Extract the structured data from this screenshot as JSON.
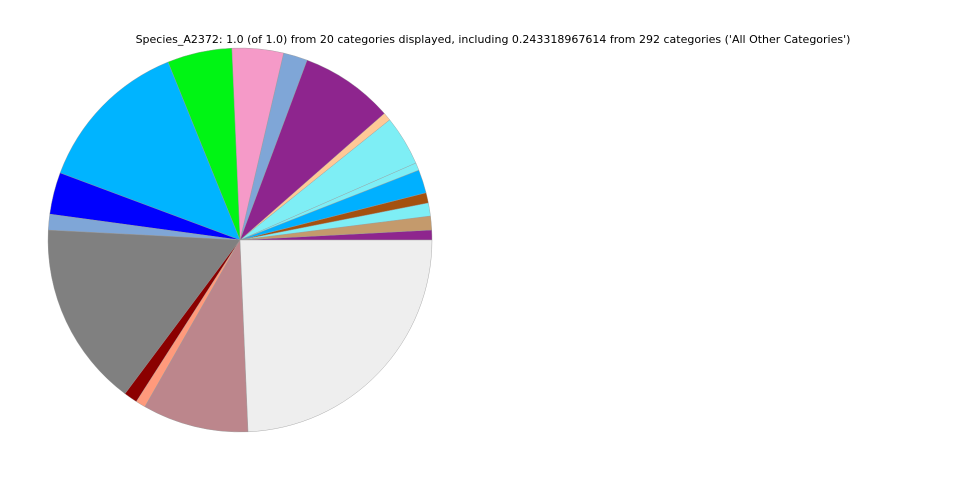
{
  "chart_data": {
    "type": "pie",
    "title": "Species_A2372: 1.0 (of 1.0) from 20 categories displayed, including 0.243318967614 from 292 categories ('All Other Categories')",
    "categories": [
      null,
      null,
      null,
      null,
      null,
      null,
      null,
      null,
      null,
      null,
      null,
      null,
      null,
      null,
      null,
      null,
      null,
      null,
      null,
      null
    ],
    "values": [
      0.0083,
      0.0117,
      0.011,
      0.0086,
      0.0197,
      0.0064,
      0.042,
      0.0069,
      0.0786,
      0.0203,
      0.0433,
      0.0544,
      0.132,
      0.0353,
      0.0133,
      0.156,
      0.0114,
      0.0083,
      0.0892,
      0.243318967614
    ],
    "colors": [
      "#8e258e",
      "#c49a6c",
      "#7eeef5",
      "#a4510f",
      "#00b0ff",
      "#7eeef5",
      "#7eeef5",
      "#ffc896",
      "#8e258e",
      "#7fa6d7",
      "#f59ac8",
      "#00f514",
      "#00b4ff",
      "#0000ff",
      "#7fa6d7",
      "#808080",
      "#8b0000",
      "#ff9a7c",
      "#bc868c",
      "#eeeeee"
    ]
  }
}
